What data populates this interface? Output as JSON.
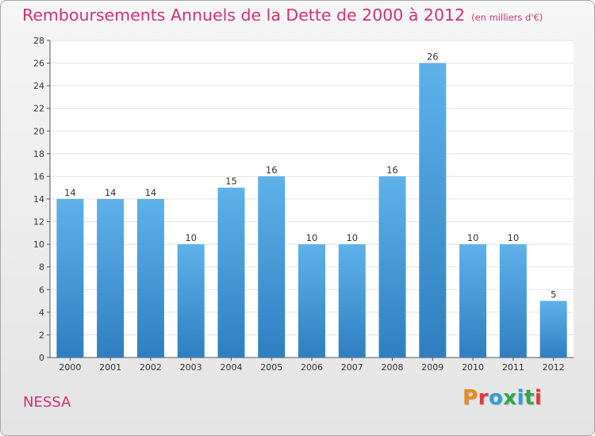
{
  "title": "Remboursements Annuels de la Dette de 2000 à 2012",
  "subtitle": "(en milliers d'€)",
  "commune": "NESSA",
  "logo": {
    "text": "Proxiti",
    "colors": [
      "#f08a1c",
      "#e23b3b",
      "#2e9fd9",
      "#2ea84a",
      "#2e9fd9",
      "#2ea84a",
      "#e23b3b"
    ]
  },
  "colors": {
    "title": "#cf3278",
    "bar_light": "#5fb1ea",
    "bar_dark": "#2f7fc0"
  },
  "chart_data": {
    "type": "bar",
    "title": "Remboursements Annuels de la Dette de 2000 à 2012",
    "subtitle": "(en milliers d'€)",
    "categories": [
      "2000",
      "2001",
      "2002",
      "2003",
      "2004",
      "2005",
      "2006",
      "2007",
      "2008",
      "2009",
      "2010",
      "2011",
      "2012"
    ],
    "values": [
      14,
      14,
      14,
      10,
      15,
      16,
      10,
      10,
      16,
      26,
      10,
      10,
      5
    ],
    "data_labels": [
      "14",
      "14",
      "14",
      "10",
      "15",
      "16",
      "10",
      "10",
      "16",
      "26",
      "10",
      "10",
      "5"
    ],
    "yticks": [
      "0",
      "2",
      "4",
      "6",
      "8",
      "10",
      "12",
      "14",
      "16",
      "18",
      "20",
      "22",
      "24",
      "26",
      "28"
    ],
    "ylim": [
      0,
      28
    ],
    "grid": true,
    "xlabel": "",
    "ylabel": ""
  }
}
